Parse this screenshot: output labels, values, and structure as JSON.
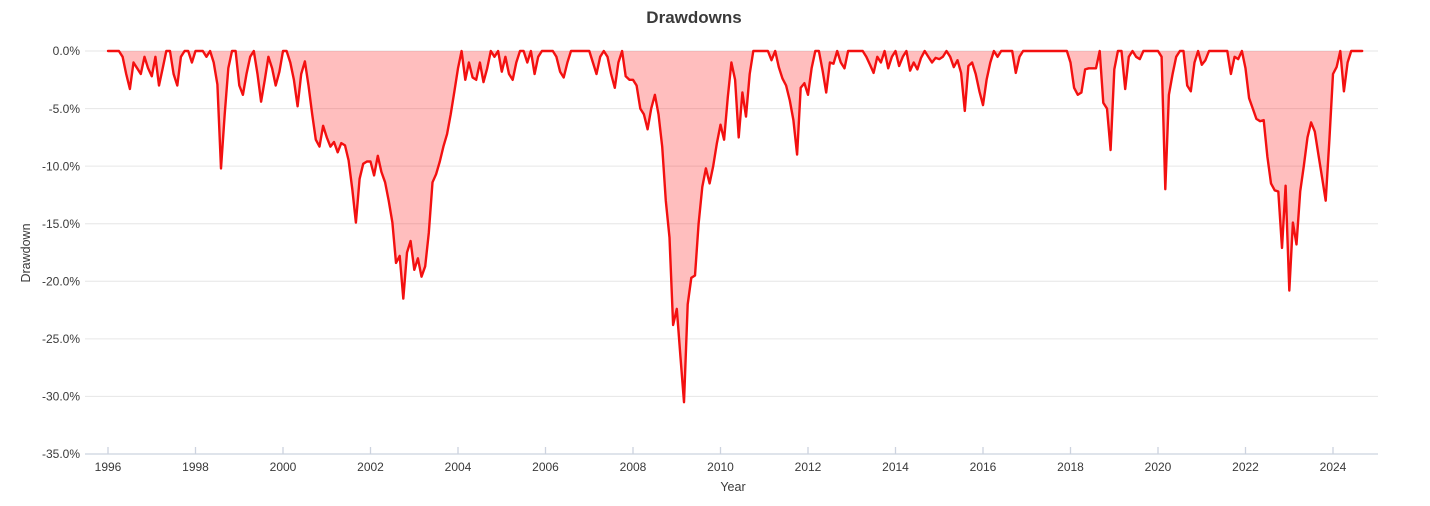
{
  "chart_data": {
    "type": "area",
    "title": "Drawdowns",
    "xlabel": "Year",
    "ylabel": "Drawdown",
    "x_ticks": [
      1996,
      1998,
      2000,
      2002,
      2004,
      2006,
      2008,
      2010,
      2012,
      2014,
      2016,
      2018,
      2020,
      2022,
      2024
    ],
    "y_tick_labels": [
      "0.0%",
      "-5.0%",
      "-10.0%",
      "-15.0%",
      "-20.0%",
      "-25.0%",
      "-30.0%",
      "-35.0%"
    ],
    "y_tick_values": [
      0,
      -5,
      -10,
      -15,
      -20,
      -25,
      -30,
      -35
    ],
    "ylim": [
      -35,
      0
    ],
    "xlim": [
      1995.47,
      2025.03
    ],
    "grid": "horizontal",
    "legend_position": "none",
    "series_name": "Drawdown",
    "unit": "percent",
    "frequency": "monthly",
    "values_by_year": {
      "1996": [
        0,
        0,
        0,
        0,
        -0.5,
        -2.0,
        -3.3,
        -1.0,
        -1.5,
        -2.0,
        -0.5,
        -1.5
      ],
      "1997": [
        -2.2,
        -0.5,
        -3.0,
        -1.5,
        0,
        0,
        -2.0,
        -3.0,
        -0.5,
        0,
        0,
        -1.0
      ],
      "1998": [
        0,
        0,
        0,
        -0.5,
        0,
        -1.0,
        -2.9,
        -10.2,
        -5.5,
        -1.5,
        0,
        0
      ],
      "1999": [
        -3.0,
        -3.8,
        -2.0,
        -0.5,
        0,
        -2.0,
        -4.4,
        -2.5,
        -0.5,
        -1.5,
        -3.0,
        -1.8
      ],
      "2000": [
        0,
        0,
        -1.0,
        -2.5,
        -4.8,
        -2.0,
        -0.9,
        -3.0,
        -5.5,
        -7.7,
        -8.3,
        -6.5
      ],
      "2001": [
        -7.5,
        -8.3,
        -7.9,
        -8.8,
        -8.0,
        -8.2,
        -9.5,
        -12.0,
        -14.9,
        -11.1,
        -9.8,
        -9.6
      ],
      "2002": [
        -9.6,
        -10.8,
        -9.1,
        -10.5,
        -11.4,
        -13.0,
        -14.9,
        -18.4,
        -17.8,
        -21.5,
        -17.5,
        -16.5
      ],
      "2003": [
        -19.0,
        -18.0,
        -19.6,
        -18.7,
        -15.8,
        -11.4,
        -10.7,
        -9.6,
        -8.3,
        -7.2,
        -5.5,
        -3.5
      ],
      "2004": [
        -1.5,
        0,
        -2.5,
        -1.0,
        -2.3,
        -2.5,
        -1.0,
        -2.7,
        -1.5,
        0,
        -0.5,
        0
      ],
      "2005": [
        -1.8,
        -0.5,
        -2.0,
        -2.5,
        -1.0,
        0,
        0,
        -1.0,
        0,
        -2.0,
        -0.5,
        0
      ],
      "2006": [
        0,
        0,
        0,
        -0.5,
        -1.8,
        -2.3,
        -1.0,
        0,
        0,
        0,
        0,
        0
      ],
      "2007": [
        0,
        -1.0,
        -2.0,
        -0.5,
        0,
        -0.5,
        -2.0,
        -3.2,
        -1.0,
        0,
        -2.2,
        -2.5
      ],
      "2008": [
        -2.5,
        -3.0,
        -5.0,
        -5.5,
        -6.8,
        -5.0,
        -3.8,
        -5.5,
        -8.3,
        -13.0,
        -16.2,
        -23.8
      ],
      "2009": [
        -22.4,
        -26.5,
        -30.5,
        -22.0,
        -19.7,
        -19.5,
        -15.0,
        -11.8,
        -10.2,
        -11.5,
        -10.0,
        -8.0
      ],
      "2010": [
        -6.4,
        -7.7,
        -4.0,
        -1.0,
        -2.5,
        -7.5,
        -3.6,
        -5.7,
        -2.0,
        0,
        0,
        0
      ],
      "2011": [
        0,
        0,
        -0.8,
        0,
        -1.4,
        -2.4,
        -3.0,
        -4.3,
        -6.0,
        -9.0,
        -3.2,
        -2.8
      ],
      "2012": [
        -3.8,
        -1.5,
        0,
        0,
        -1.7,
        -3.6,
        -1.0,
        -1.1,
        0,
        -1.0,
        -1.5,
        0
      ],
      "2013": [
        0,
        0,
        0,
        0,
        -0.5,
        -1.2,
        -1.9,
        -0.5,
        -1.0,
        0,
        -1.5,
        -0.5
      ],
      "2014": [
        0,
        -1.3,
        -0.5,
        0,
        -1.7,
        -1.0,
        -1.6,
        -0.6,
        0,
        -0.5,
        -1.0,
        -0.6
      ],
      "2015": [
        -0.7,
        -0.5,
        0,
        -0.5,
        -1.4,
        -0.8,
        -1.9,
        -5.2,
        -1.3,
        -1.0,
        -2.0,
        -3.5
      ],
      "2016": [
        -4.7,
        -2.5,
        -1.0,
        0,
        -0.5,
        0,
        0,
        0,
        0,
        -1.9,
        -0.5,
        0
      ],
      "2017": [
        0,
        0,
        0,
        0,
        0,
        0,
        0,
        0,
        0,
        0,
        0,
        0
      ],
      "2018": [
        -1.0,
        -3.2,
        -3.8,
        -3.6,
        -1.6,
        -1.5,
        -1.5,
        -1.5,
        0,
        -4.5,
        -5.0,
        -8.6
      ],
      "2019": [
        -1.6,
        0,
        0,
        -3.3,
        -0.5,
        0,
        -0.5,
        -0.7,
        0,
        0,
        0,
        0
      ],
      "2020": [
        0,
        -0.5,
        -12.0,
        -3.8,
        -2.0,
        -0.5,
        0,
        0,
        -3.0,
        -3.5,
        -1.0,
        0
      ],
      "2021": [
        -1.2,
        -0.8,
        0,
        0,
        0,
        0,
        0,
        0,
        -2.0,
        -0.5,
        -0.7,
        0
      ],
      "2022": [
        -1.5,
        -4.1,
        -5.0,
        -5.9,
        -6.1,
        -6.0,
        -9.2,
        -11.5,
        -12.1,
        -12.2,
        -17.1,
        -11.7
      ],
      "2023": [
        -20.8,
        -14.9,
        -16.8,
        -12.2,
        -10.0,
        -7.5,
        -6.2,
        -7.0,
        -9.0,
        -11.0,
        -13.0,
        -7.7
      ],
      "2024": [
        -2.0,
        -1.4,
        0,
        -3.5,
        -1.0,
        0,
        0,
        0,
        0
      ]
    },
    "annotations": {
      "max_drawdown": "-30.5%",
      "max_drawdown_date": "2009-03"
    },
    "colors": {
      "line": "#f31010",
      "fill": "rgba(255,16,16,0.27)",
      "gridline": "#e6e6e6",
      "axis": "#ccd3df",
      "text": "#3a3a3a"
    }
  }
}
